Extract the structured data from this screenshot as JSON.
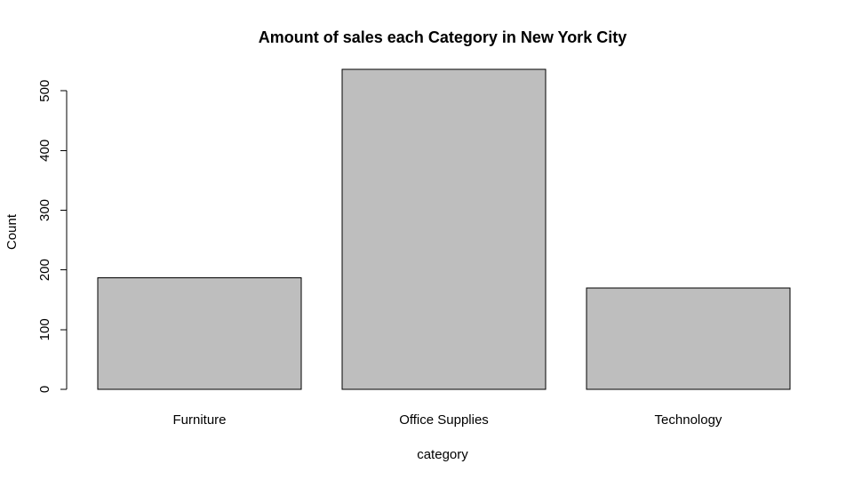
{
  "chart_data": {
    "type": "bar",
    "title": "Amount of sales each Category in New York City",
    "xlabel": "category",
    "ylabel": "Count",
    "categories": [
      "Furniture",
      "Office Supplies",
      "Technology"
    ],
    "values": [
      187,
      536,
      170
    ],
    "ylim": [
      0,
      536
    ],
    "yticks": [
      0,
      100,
      200,
      300,
      400,
      500
    ],
    "bar_color": "#bebebe",
    "outline_color": "#000000",
    "grid": false,
    "legend": "none"
  }
}
